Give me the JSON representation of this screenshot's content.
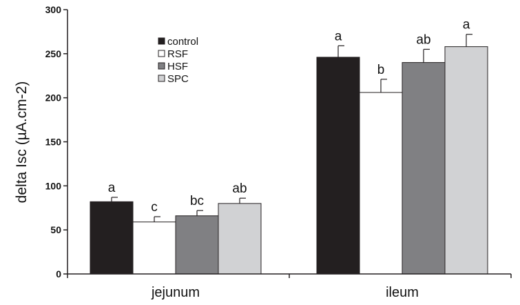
{
  "chart_data": {
    "type": "bar",
    "categories": [
      "jejunum",
      "ileum"
    ],
    "ylabel": "delta Isc (µA.cm-2)",
    "ylim": [
      0,
      300
    ],
    "yticks": [
      0,
      50,
      100,
      150,
      200,
      250,
      300
    ],
    "grid": false,
    "legend_position": "top-left",
    "series": [
      {
        "name": "control",
        "color": "#231f20",
        "values": [
          82,
          246
        ],
        "errors": [
          5,
          13
        ],
        "labels": [
          "a",
          "a"
        ]
      },
      {
        "name": "RSF",
        "color": "#ffffff",
        "values": [
          59,
          206
        ],
        "errors": [
          6,
          15
        ],
        "labels": [
          "c",
          "b"
        ]
      },
      {
        "name": "HSF",
        "color": "#808083",
        "values": [
          66,
          240
        ],
        "errors": [
          6,
          15
        ],
        "labels": [
          "bc",
          "ab"
        ]
      },
      {
        "name": "SPC",
        "color": "#d1d2d4",
        "values": [
          80,
          258
        ],
        "errors": [
          6,
          14
        ],
        "labels": [
          "ab",
          "a"
        ]
      }
    ]
  }
}
